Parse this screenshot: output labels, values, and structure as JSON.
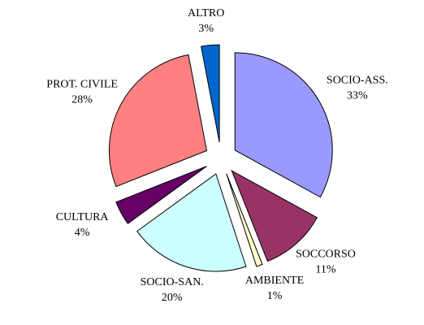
{
  "chart_data": {
    "type": "pie",
    "categories": [
      "SOCIO-ASS.",
      "SOCCORSO",
      "AMBIENTE",
      "SOCIO-SAN.",
      "CULTURA",
      "PROT. CIVILE",
      "ALTRO"
    ],
    "values": [
      33,
      11,
      1,
      20,
      4,
      28,
      3
    ],
    "value_labels": [
      "33%",
      "11%",
      "1%",
      "20%",
      "4%",
      "28%",
      "3%"
    ],
    "colors": [
      "#9999ff",
      "#993366",
      "#ffffcc",
      "#ccffff",
      "#660066",
      "#ff8080",
      "#0066cc"
    ]
  }
}
